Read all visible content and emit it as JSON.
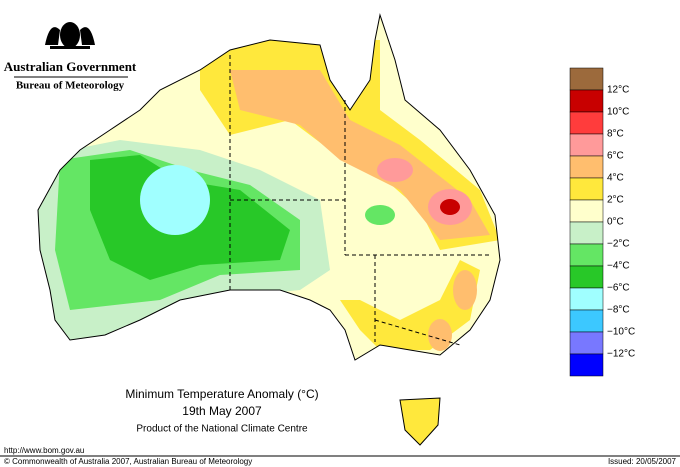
{
  "header": {
    "government": "Australian Government",
    "agency": "Bureau of Meteorology"
  },
  "map": {
    "title": "Minimum Temperature Anomaly (°C)",
    "date": "19th May 2007",
    "product": "Product of the National Climate Centre"
  },
  "legend": {
    "colors": [
      "#9c6a3c",
      "#c80000",
      "#ff3c3c",
      "#ff9a9a",
      "#ffbe6e",
      "#ffe83c",
      "#ffffcc",
      "#c8f0c8",
      "#64e664",
      "#28c828",
      "#a0ffff",
      "#3cc8ff",
      "#7878ff",
      "#0000ff"
    ],
    "labels": [
      "12°C",
      "10°C",
      "8°C",
      "6°C",
      "4°C",
      "2°C",
      "0°C",
      "−2°C",
      "−4°C",
      "−6°C",
      "−8°C",
      "−10°C",
      "−12°C"
    ]
  },
  "footer": {
    "url": "http://www.bom.gov.au",
    "copyright": "© Commonwealth of Australia 2007, Australian Bureau of Meteorology",
    "issued": "Issued: 20/05/2007"
  }
}
